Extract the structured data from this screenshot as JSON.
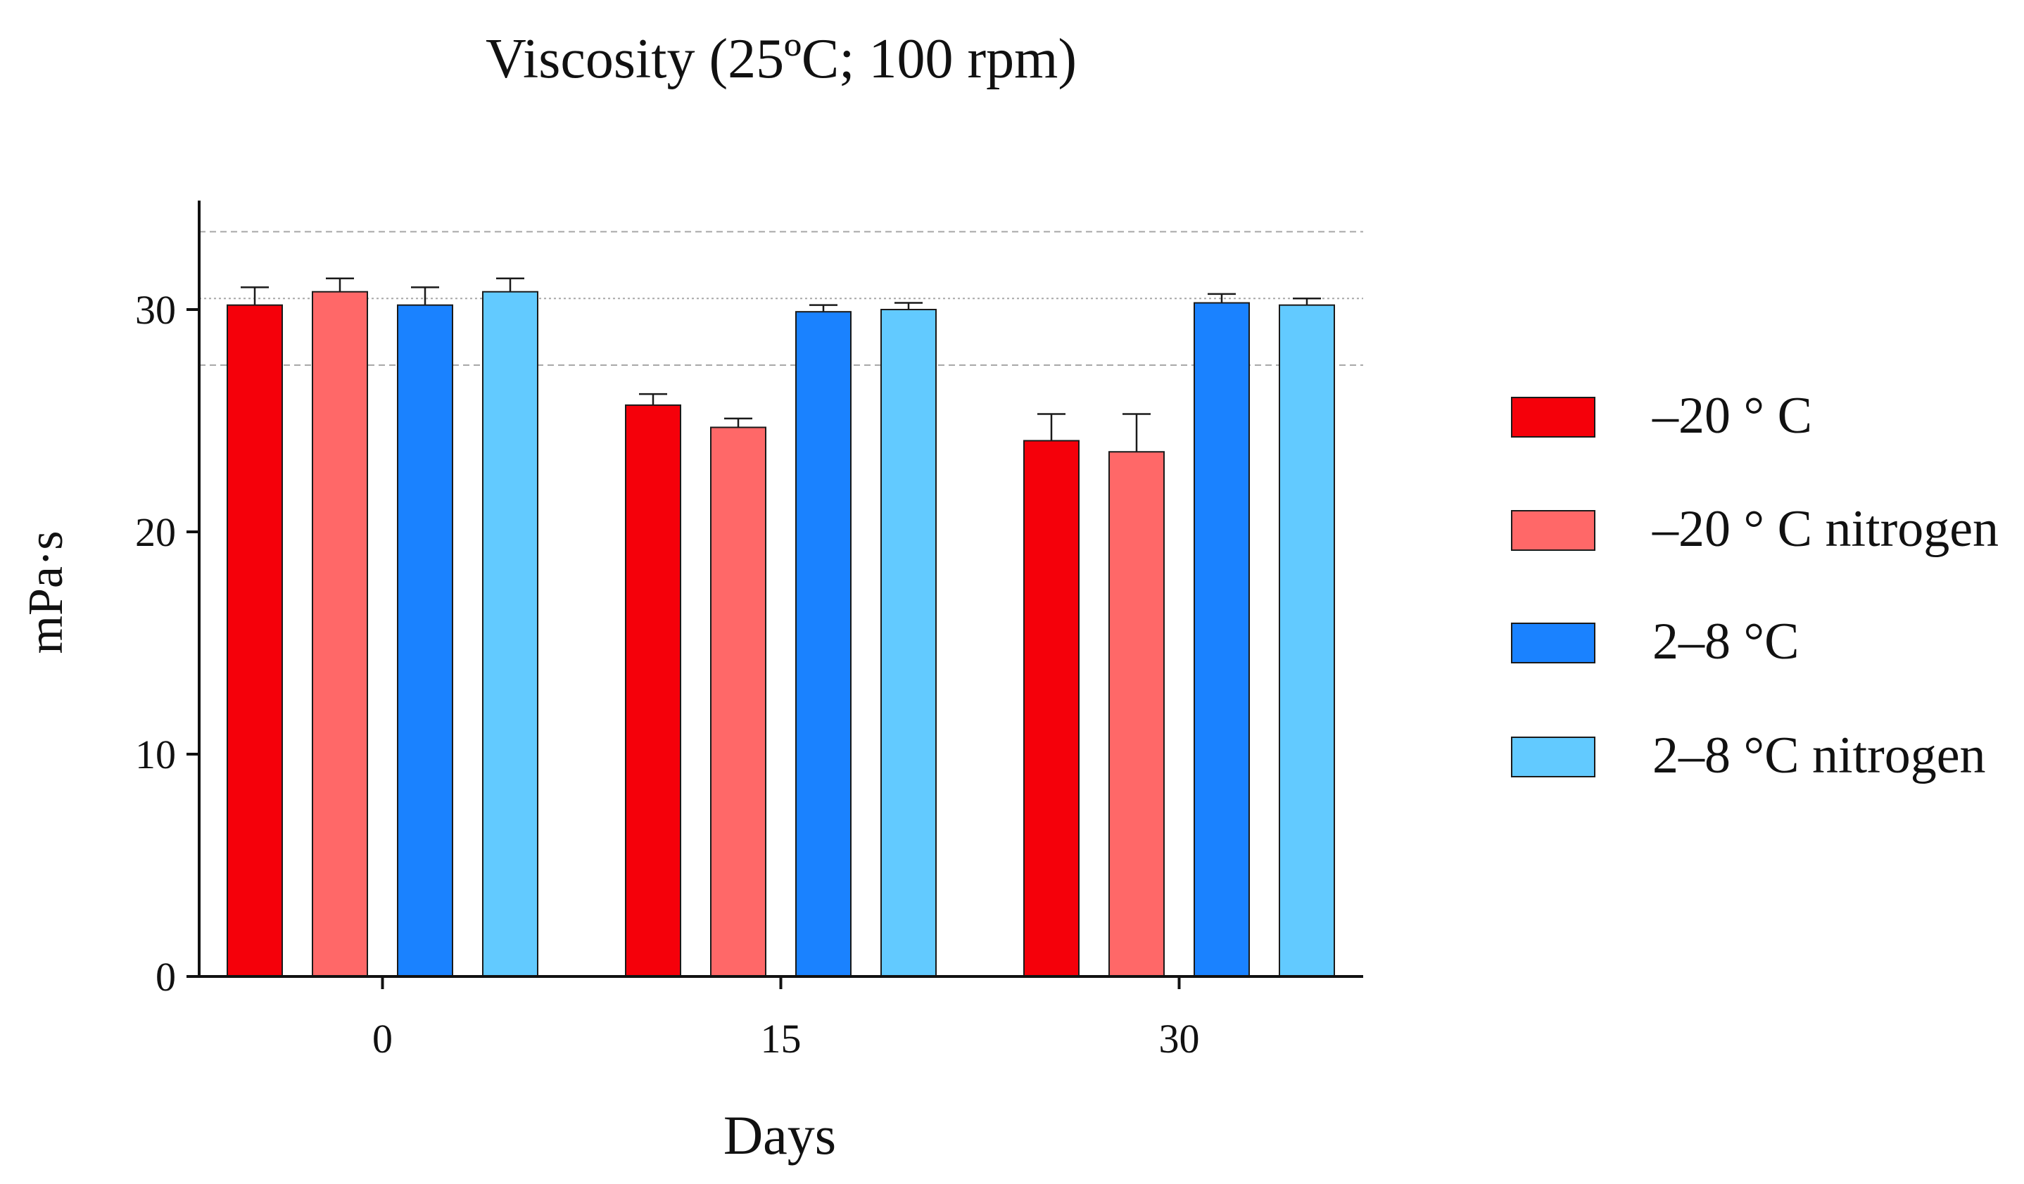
{
  "chart_data": {
    "type": "bar",
    "title": "Viscosity (25ºC; 100 rpm)",
    "xlabel": "Days",
    "ylabel": "mPa·s",
    "categories": [
      "0",
      "15",
      "30"
    ],
    "ylim": [
      0,
      35
    ],
    "yticks": [
      0,
      10,
      20,
      30
    ],
    "grid": "dashed reference lines at 27.5, 30.5 and 33.5",
    "reference_lines": [
      27.5,
      30.5,
      33.5
    ],
    "legend_position": "right",
    "series": [
      {
        "name": "–20 ° C",
        "color": "#F5000A",
        "values": [
          30.2,
          25.7,
          24.1
        ],
        "errors": [
          0.8,
          0.5,
          1.2
        ]
      },
      {
        "name": "–20 ° C nitrogen",
        "color": "#FF6868",
        "values": [
          30.8,
          24.7,
          23.6
        ],
        "errors": [
          0.6,
          0.4,
          1.7
        ]
      },
      {
        "name": "2–8 °C",
        "color": "#1A82FF",
        "values": [
          30.2,
          29.9,
          30.3
        ],
        "errors": [
          0.8,
          0.3,
          0.4
        ]
      },
      {
        "name": "2–8 °C nitrogen",
        "color": "#62CAFF",
        "values": [
          30.8,
          30.0,
          30.2
        ],
        "errors": [
          0.6,
          0.3,
          0.3
        ]
      }
    ]
  }
}
